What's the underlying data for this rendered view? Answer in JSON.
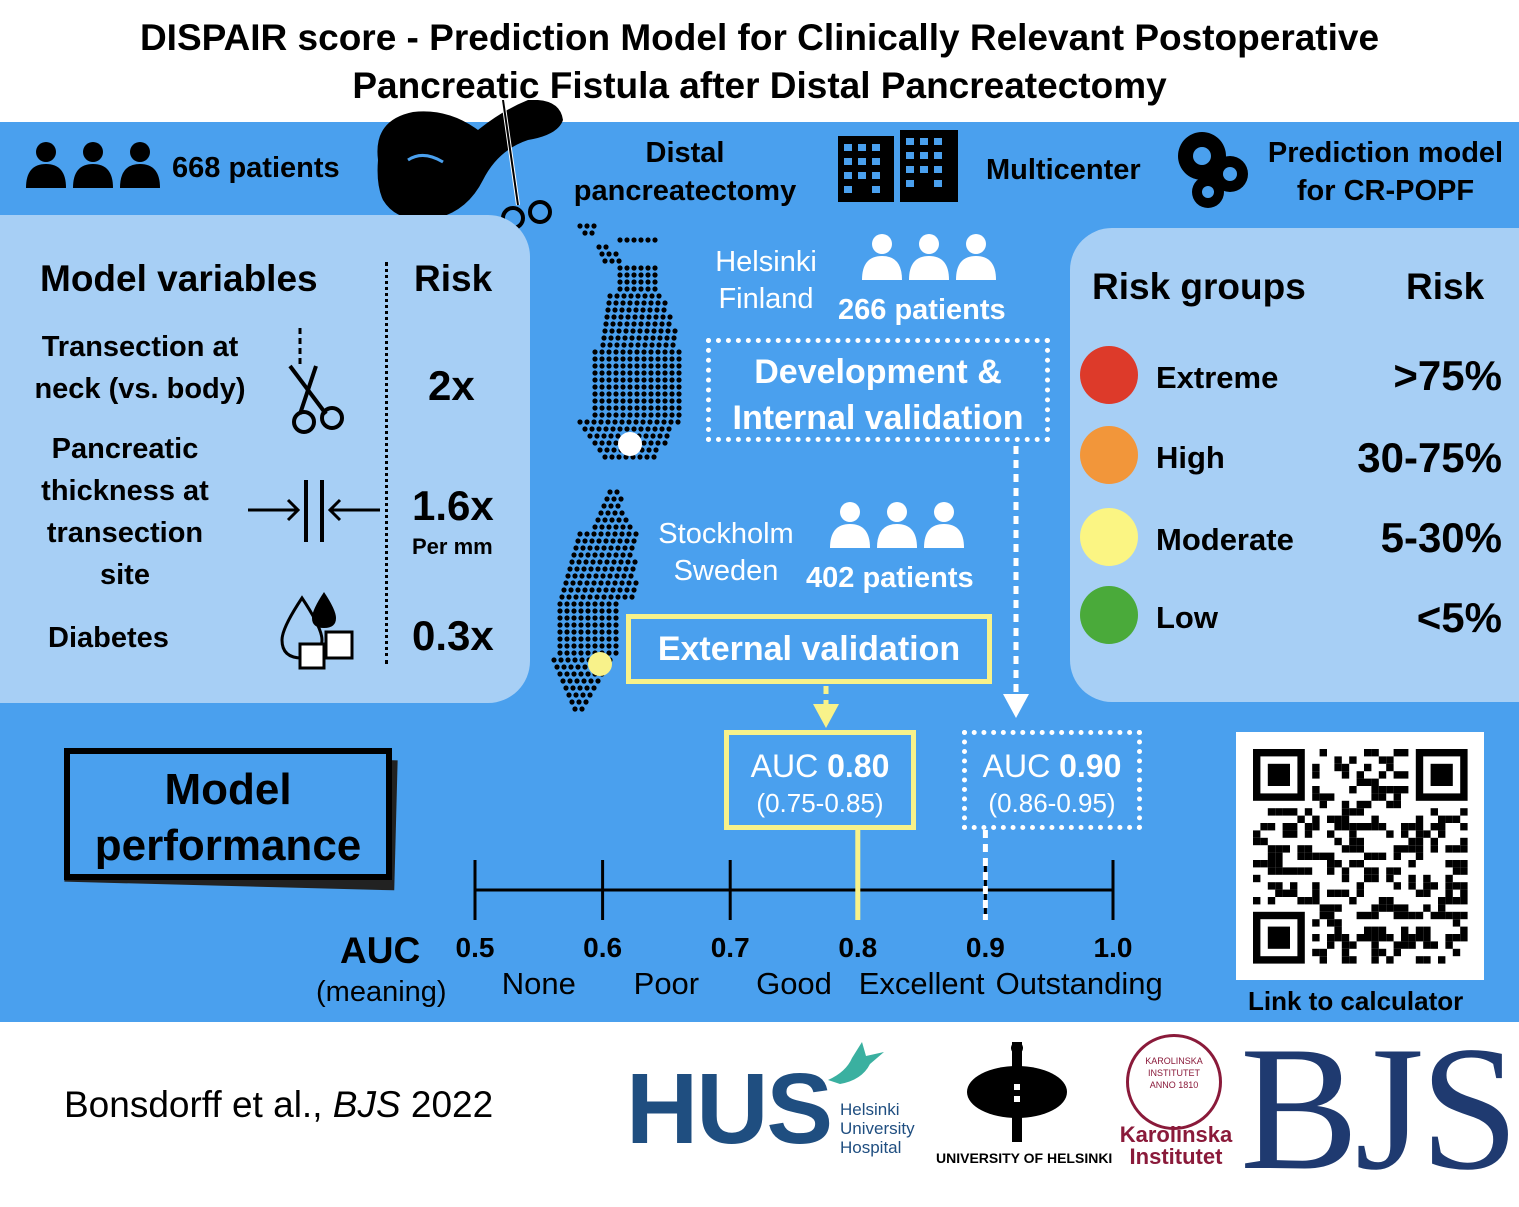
{
  "title": {
    "line1": "DISPAIR score - Prediction Model for Clinically Relevant Postoperative",
    "line2": "Pancreatic Fistula after Distal Pancreatectomy"
  },
  "top_bar": {
    "patients": "668 patients",
    "procedure_line1": "Distal",
    "procedure_line2": "pancreatectomy",
    "multicenter": "Multicenter",
    "model_line1": "Prediction model",
    "model_line2": "for CR-POPF"
  },
  "model_variables": {
    "header_variables": "Model variables",
    "header_risk": "Risk",
    "items": [
      {
        "label_line1": "Transection at",
        "label_line2": "neck (vs. body)",
        "risk": "2x",
        "icon": "scissors-icon"
      },
      {
        "label_line1": "Pancreatic",
        "label_line2": "thickness at",
        "label_line3": "transection",
        "label_line4": "site",
        "risk": "1.6x",
        "risk_note": "Per mm",
        "icon": "thickness-arrows-icon"
      },
      {
        "label_line1": "Diabetes",
        "risk": "0.3x",
        "icon": "sugar-drop-icon"
      }
    ]
  },
  "cohorts": {
    "helsinki": {
      "city": "Helsinki",
      "country": "Finland",
      "patients": "266 patients",
      "role_line1": "Development &",
      "role_line2": "Internal validation",
      "color": "#ffffff"
    },
    "stockholm": {
      "city": "Stockholm",
      "country": "Sweden",
      "patients": "402 patients",
      "role": "External validation",
      "color": "#f8f28a"
    }
  },
  "risk_groups": {
    "header_groups": "Risk groups",
    "header_risk": "Risk",
    "items": [
      {
        "name": "Extreme",
        "risk": ">75%",
        "color": "#dd3a2a"
      },
      {
        "name": "High",
        "risk": "30-75%",
        "color": "#f2963a"
      },
      {
        "name": "Moderate",
        "risk": "5-30%",
        "color": "#fbf583"
      },
      {
        "name": "Low",
        "risk": "<5%",
        "color": "#4aaa3a"
      }
    ]
  },
  "performance": {
    "label_line1": "Model",
    "label_line2": "performance",
    "external": {
      "auc_prefix": "AUC",
      "auc_value": "0.80",
      "ci": "(0.75-0.85)",
      "value": 0.8
    },
    "internal": {
      "auc_prefix": "AUC",
      "auc_value": "0.90",
      "ci": "(0.86-0.95)",
      "value": 0.9
    },
    "axis_label": "AUC",
    "axis_sublabel": "(meaning)",
    "ticks": [
      "0.5",
      "0.6",
      "0.7",
      "0.8",
      "0.9",
      "1.0"
    ],
    "meanings": [
      "None",
      "Poor",
      "Good",
      "Excellent",
      "Outstanding"
    ]
  },
  "qr": {
    "caption": "Link to calculator"
  },
  "footer": {
    "citation_authors": "Bonsdorff et al.,",
    "citation_journal": "BJS",
    "citation_year": "2022",
    "hus_logo": "HUS",
    "hus_line1": "Helsinki",
    "hus_line2": "University",
    "hus_line3": "Hospital",
    "uh_logo": "UNIVERSITY OF HELSINKI",
    "ki_line1": "Karolinska",
    "ki_line2": "Institutet",
    "ki_seal": "KAROLINSKA INSTITUTET ANNO 1810",
    "bjs_logo": "BJS"
  }
}
